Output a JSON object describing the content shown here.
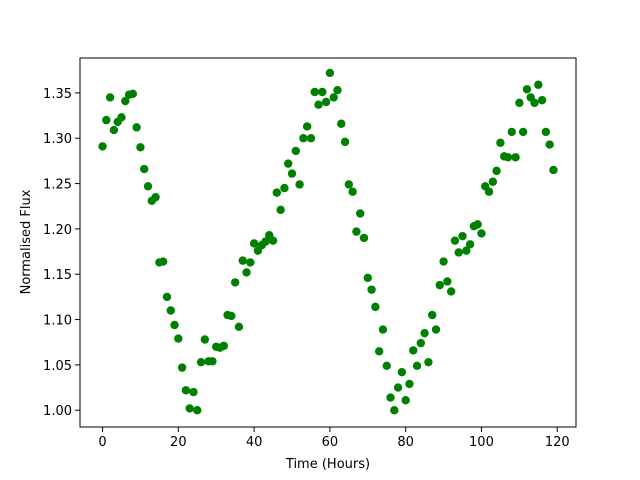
{
  "chart_data": {
    "type": "scatter",
    "xlabel": "Time (Hours)",
    "ylabel": "Normalised Flux",
    "color": "#008000",
    "x": [
      0,
      1,
      2,
      3,
      4,
      5,
      6,
      7,
      8,
      9,
      10,
      11,
      12,
      13,
      14,
      15,
      16,
      17,
      18,
      19,
      20,
      21,
      22,
      23,
      24,
      25,
      26,
      27,
      28,
      29,
      30,
      31,
      32,
      33,
      34,
      35,
      36,
      37,
      38,
      39,
      40,
      41,
      42,
      43,
      44,
      45,
      46,
      47,
      48,
      49,
      50,
      51,
      52,
      53,
      54,
      55,
      56,
      57,
      58,
      59,
      60,
      61,
      62,
      63,
      64,
      65,
      66,
      67,
      68,
      69,
      70,
      71,
      72,
      73,
      74,
      75,
      76,
      77,
      78,
      79,
      80,
      81,
      82,
      83,
      84,
      85,
      86,
      87,
      88,
      89,
      90,
      91,
      92,
      93,
      94,
      95,
      96,
      97,
      98,
      99,
      100,
      101,
      102,
      103,
      104,
      105,
      106,
      107,
      108,
      109,
      110,
      111,
      112,
      113,
      114,
      115,
      116,
      117,
      118,
      119
    ],
    "values": [
      1.291,
      1.32,
      1.345,
      1.309,
      1.318,
      1.323,
      1.341,
      1.348,
      1.349,
      1.312,
      1.29,
      1.266,
      1.247,
      1.231,
      1.235,
      1.163,
      1.164,
      1.125,
      1.11,
      1.094,
      1.079,
      1.047,
      1.022,
      1.002,
      1.02,
      1.0,
      1.053,
      1.078,
      1.054,
      1.054,
      1.07,
      1.069,
      1.071,
      1.105,
      1.104,
      1.141,
      1.092,
      1.165,
      1.152,
      1.163,
      1.184,
      1.176,
      1.182,
      1.186,
      1.193,
      1.187,
      1.24,
      1.221,
      1.245,
      1.272,
      1.261,
      1.286,
      1.249,
      1.3,
      1.313,
      1.3,
      1.351,
      1.337,
      1.351,
      1.34,
      1.372,
      1.345,
      1.353,
      1.316,
      1.296,
      1.249,
      1.241,
      1.197,
      1.217,
      1.19,
      1.146,
      1.133,
      1.114,
      1.065,
      1.089,
      1.049,
      1.014,
      1.0,
      1.025,
      1.042,
      1.011,
      1.029,
      1.066,
      1.049,
      1.074,
      1.085,
      1.053,
      1.105,
      1.089,
      1.138,
      1.164,
      1.142,
      1.131,
      1.187,
      1.174,
      1.192,
      1.176,
      1.183,
      1.203,
      1.205,
      1.195,
      1.247,
      1.241,
      1.252,
      1.264,
      1.295,
      1.28,
      1.279,
      1.307,
      1.279,
      1.339,
      1.307,
      1.354,
      1.345,
      1.339,
      1.359,
      1.342,
      1.307,
      1.293,
      1.265
    ],
    "xlim": [
      -5.95,
      124.95
    ],
    "xticks": [
      0,
      20,
      40,
      60,
      80,
      100,
      120
    ],
    "ylim": [
      0.9815,
      1.3885
    ],
    "yticks": [
      {
        "value": 1.0,
        "label": "1.00"
      },
      {
        "value": 1.05,
        "label": "1.05"
      },
      {
        "value": 1.1,
        "label": "1.10"
      },
      {
        "value": 1.15,
        "label": "1.15"
      },
      {
        "value": 1.2,
        "label": "1.20"
      },
      {
        "value": 1.25,
        "label": "1.25"
      },
      {
        "value": 1.3,
        "label": "1.30"
      },
      {
        "value": 1.35,
        "label": "1.35"
      }
    ]
  }
}
